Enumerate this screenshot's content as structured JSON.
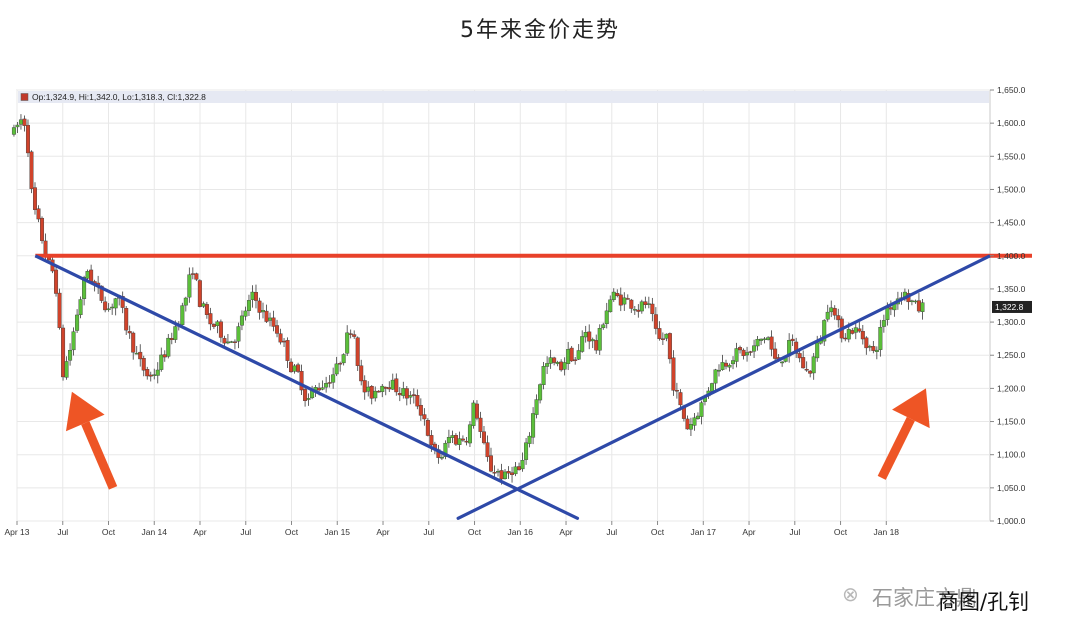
{
  "page": {
    "title": "5年来金价走势",
    "watermark_source": "石家庄方鼎",
    "watermark_credit": "商图/孔钊"
  },
  "chart_data": {
    "type": "candlestick",
    "title": "5年来金价走势",
    "ohlc_label": "Op:1,324.9, Hi:1,342.0, Lo:1,318.3, Cl:1,322.8",
    "last_price_label": "1,322.8",
    "last_price": 1322.8,
    "ylim": [
      1000,
      1650
    ],
    "y_ticks": [
      1000,
      1050,
      1100,
      1150,
      1200,
      1250,
      1300,
      1350,
      1400,
      1450,
      1500,
      1550,
      1600,
      1650
    ],
    "y_tick_labels": [
      "1,000.0",
      "1,050.0",
      "1,100.0",
      "1,150.0",
      "1,200.0",
      "1,250.0",
      "1,300.0",
      "1,350.0",
      "1,400.0",
      "1,450.0",
      "1,500.0",
      "1,550.0",
      "1,600.0",
      "1,650.0"
    ],
    "x_range": [
      0,
      63.8
    ],
    "x_ticks": [
      {
        "label": "Apr 13",
        "t": 0
      },
      {
        "label": "Jul",
        "t": 3
      },
      {
        "label": "Oct",
        "t": 6
      },
      {
        "label": "Jan 14",
        "t": 9
      },
      {
        "label": "Apr",
        "t": 12
      },
      {
        "label": "Jul",
        "t": 15
      },
      {
        "label": "Oct",
        "t": 18
      },
      {
        "label": "Jan 15",
        "t": 21
      },
      {
        "label": "Apr",
        "t": 24
      },
      {
        "label": "Jul",
        "t": 27
      },
      {
        "label": "Oct",
        "t": 30
      },
      {
        "label": "Jan 16",
        "t": 33
      },
      {
        "label": "Apr",
        "t": 36
      },
      {
        "label": "Jul",
        "t": 39
      },
      {
        "label": "Oct",
        "t": 42
      },
      {
        "label": "Jan 17",
        "t": 45
      },
      {
        "label": "Apr",
        "t": 48
      },
      {
        "label": "Jul",
        "t": 51
      },
      {
        "label": "Oct",
        "t": 54
      },
      {
        "label": "Jan 18",
        "t": 57
      }
    ],
    "price_path": [
      [
        -0.2,
        1585
      ],
      [
        0.2,
        1605
      ],
      [
        0.6,
        1600
      ],
      [
        1.0,
        1480
      ],
      [
        1.5,
        1440
      ],
      [
        2.0,
        1390
      ],
      [
        2.5,
        1370
      ],
      [
        3.0,
        1220
      ],
      [
        3.5,
        1260
      ],
      [
        4.0,
        1320
      ],
      [
        4.6,
        1380
      ],
      [
        5.2,
        1350
      ],
      [
        6.0,
        1320
      ],
      [
        6.6,
        1340
      ],
      [
        7.2,
        1290
      ],
      [
        8.0,
        1240
      ],
      [
        8.7,
        1215
      ],
      [
        9.2,
        1230
      ],
      [
        9.8,
        1260
      ],
      [
        10.5,
        1300
      ],
      [
        11.0,
        1330
      ],
      [
        11.5,
        1385
      ],
      [
        12.0,
        1330
      ],
      [
        12.6,
        1300
      ],
      [
        13.2,
        1290
      ],
      [
        13.8,
        1270
      ],
      [
        14.4,
        1280
      ],
      [
        15.0,
        1320
      ],
      [
        15.5,
        1340
      ],
      [
        16.2,
        1310
      ],
      [
        17.0,
        1290
      ],
      [
        17.6,
        1260
      ],
      [
        18.0,
        1230
      ],
      [
        18.5,
        1220
      ],
      [
        19.0,
        1180
      ],
      [
        19.6,
        1200
      ],
      [
        20.3,
        1210
      ],
      [
        21.0,
        1230
      ],
      [
        21.7,
        1280
      ],
      [
        22.0,
        1300
      ],
      [
        22.6,
        1200
      ],
      [
        23.2,
        1190
      ],
      [
        23.8,
        1205
      ],
      [
        24.3,
        1210
      ],
      [
        24.9,
        1200
      ],
      [
        25.5,
        1190
      ],
      [
        26.2,
        1180
      ],
      [
        26.8,
        1150
      ],
      [
        27.2,
        1105
      ],
      [
        27.8,
        1095
      ],
      [
        28.4,
        1130
      ],
      [
        28.9,
        1120
      ],
      [
        29.6,
        1130
      ],
      [
        30.0,
        1180
      ],
      [
        30.5,
        1120
      ],
      [
        31.0,
        1080
      ],
      [
        31.5,
        1075
      ],
      [
        32.0,
        1065
      ],
      [
        32.5,
        1080
      ],
      [
        33.0,
        1075
      ],
      [
        33.5,
        1120
      ],
      [
        34.0,
        1180
      ],
      [
        34.5,
        1230
      ],
      [
        35.0,
        1240
      ],
      [
        35.6,
        1230
      ],
      [
        36.2,
        1255
      ],
      [
        36.7,
        1240
      ],
      [
        37.2,
        1290
      ],
      [
        38.0,
        1260
      ],
      [
        38.5,
        1310
      ],
      [
        39.0,
        1340
      ],
      [
        39.6,
        1335
      ],
      [
        40.2,
        1330
      ],
      [
        40.8,
        1320
      ],
      [
        41.3,
        1330
      ],
      [
        41.7,
        1300
      ],
      [
        42.0,
        1270
      ],
      [
        42.6,
        1280
      ],
      [
        43.0,
        1210
      ],
      [
        43.5,
        1170
      ],
      [
        44.0,
        1140
      ],
      [
        44.5,
        1160
      ],
      [
        45.0,
        1180
      ],
      [
        45.5,
        1210
      ],
      [
        46.0,
        1235
      ],
      [
        46.5,
        1240
      ],
      [
        47.0,
        1250
      ],
      [
        47.5,
        1255
      ],
      [
        48.0,
        1250
      ],
      [
        48.6,
        1270
      ],
      [
        49.2,
        1280
      ],
      [
        49.7,
        1240
      ],
      [
        50.3,
        1250
      ],
      [
        50.8,
        1270
      ],
      [
        51.4,
        1240
      ],
      [
        51.9,
        1220
      ],
      [
        52.3,
        1250
      ],
      [
        52.8,
        1285
      ],
      [
        53.3,
        1340
      ],
      [
        53.7,
        1300
      ],
      [
        54.2,
        1280
      ],
      [
        54.7,
        1290
      ],
      [
        55.2,
        1285
      ],
      [
        55.7,
        1270
      ],
      [
        56.2,
        1250
      ],
      [
        56.6,
        1285
      ],
      [
        57.0,
        1320
      ],
      [
        57.5,
        1330
      ],
      [
        58.0,
        1345
      ],
      [
        58.5,
        1335
      ],
      [
        59.0,
        1320
      ],
      [
        59.4,
        1322.8
      ]
    ],
    "horizontal_line": {
      "value": 1400,
      "color": "#e8412a"
    },
    "trend_curve": {
      "type": "arc",
      "start": [
        1.2,
        1400
      ],
      "vertex": [
        32.8,
        1048
      ],
      "end": [
        63.8,
        1400
      ],
      "color": "#2e49a8"
    },
    "arrows": [
      {
        "from": [
          6.3,
          1050
        ],
        "to": [
          3.6,
          1195
        ],
        "color": "#ee5525"
      },
      {
        "from": [
          56.7,
          1065
        ],
        "to": [
          59.6,
          1200
        ],
        "color": "#ee5525"
      }
    ],
    "colors": {
      "up": "#5bbf3a",
      "down": "#d0432b",
      "grid": "#e8e8e8",
      "label_bg": "#e6e9f3",
      "last_price_bg": "#222222"
    }
  }
}
